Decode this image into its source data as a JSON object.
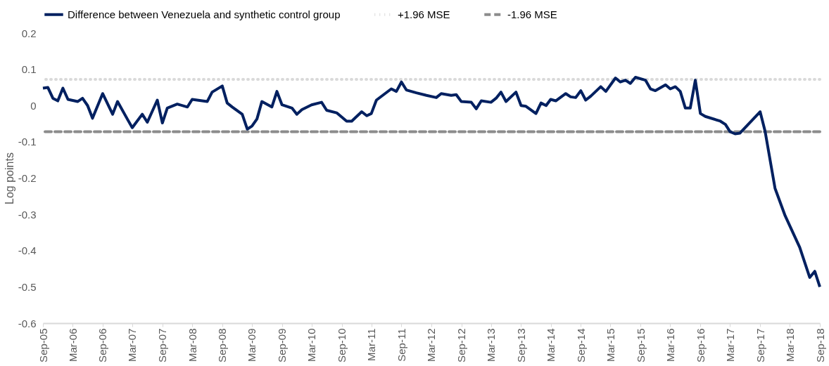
{
  "chart_data": {
    "type": "line",
    "ylabel": "Log points",
    "x": [
      "2005-09",
      "2005-10",
      "2005-11",
      "2005-12",
      "2006-01",
      "2006-02",
      "2006-04",
      "2006-05",
      "2006-06",
      "2006-07",
      "2006-09",
      "2006-11",
      "2006-12",
      "2007-02",
      "2007-03",
      "2007-05",
      "2007-06",
      "2007-08",
      "2007-09",
      "2007-10",
      "2007-12",
      "2008-02",
      "2008-03",
      "2008-06",
      "2008-07",
      "2008-09",
      "2008-10",
      "2008-11",
      "2009-01",
      "2009-02",
      "2009-03",
      "2009-04",
      "2009-05",
      "2009-07",
      "2009-08",
      "2009-09",
      "2009-11",
      "2009-12",
      "2010-01",
      "2010-03",
      "2010-05",
      "2010-06",
      "2010-08",
      "2010-10",
      "2010-11",
      "2011-01",
      "2011-02",
      "2011-03",
      "2011-04",
      "2011-07",
      "2011-08",
      "2011-09",
      "2011-10",
      "2011-12",
      "2012-02",
      "2012-04",
      "2012-05",
      "2012-07",
      "2012-08",
      "2012-09",
      "2012-11",
      "2012-12",
      "2013-01",
      "2013-03",
      "2013-04",
      "2013-05",
      "2013-06",
      "2013-08",
      "2013-09",
      "2013-10",
      "2013-12",
      "2014-01",
      "2014-02",
      "2014-03",
      "2014-04",
      "2014-06",
      "2014-07",
      "2014-08",
      "2014-09",
      "2014-10",
      "2014-11",
      "2015-01",
      "2015-02",
      "2015-04",
      "2015-05",
      "2015-06",
      "2015-07",
      "2015-08",
      "2015-10",
      "2015-11",
      "2015-12",
      "2016-02",
      "2016-03",
      "2016-04",
      "2016-05",
      "2016-06",
      "2016-07",
      "2016-08",
      "2016-09",
      "2016-10",
      "2017-01",
      "2017-02",
      "2017-03",
      "2017-04",
      "2017-05",
      "2017-09",
      "2017-10",
      "2017-12",
      "2018-02",
      "2018-05",
      "2018-07",
      "2018-08",
      "2018-09"
    ],
    "series": [
      {
        "name": "Difference between Venezuela and synthetic control group",
        "color": "#002060",
        "values": [
          0.048,
          0.05,
          0.02,
          0.013,
          0.048,
          0.017,
          0.011,
          0.02,
          0.0,
          -0.035,
          0.033,
          -0.024,
          0.011,
          -0.039,
          -0.061,
          -0.024,
          -0.046,
          0.015,
          -0.048,
          -0.007,
          0.004,
          -0.004,
          0.017,
          0.011,
          0.037,
          0.054,
          0.007,
          -0.004,
          -0.024,
          -0.065,
          -0.057,
          -0.037,
          0.011,
          -0.004,
          0.039,
          0.002,
          -0.007,
          -0.024,
          -0.011,
          0.002,
          0.009,
          -0.013,
          -0.02,
          -0.043,
          -0.043,
          -0.017,
          -0.028,
          -0.022,
          0.015,
          0.046,
          0.039,
          0.065,
          0.043,
          0.035,
          0.028,
          0.022,
          0.033,
          0.028,
          0.03,
          0.011,
          0.009,
          -0.009,
          0.013,
          0.009,
          0.02,
          0.037,
          0.011,
          0.037,
          0.0,
          -0.002,
          -0.022,
          0.007,
          0.0,
          0.017,
          0.013,
          0.033,
          0.024,
          0.022,
          0.041,
          0.015,
          0.026,
          0.052,
          0.039,
          0.076,
          0.065,
          0.07,
          0.061,
          0.078,
          0.07,
          0.046,
          0.041,
          0.057,
          0.046,
          0.052,
          0.039,
          -0.007,
          -0.007,
          0.07,
          -0.022,
          -0.03,
          -0.043,
          -0.052,
          -0.072,
          -0.078,
          -0.076,
          -0.017,
          -0.07,
          -0.228,
          -0.304,
          -0.391,
          -0.474,
          -0.457,
          -0.5
        ]
      }
    ],
    "ref_lines": [
      {
        "axis": "y",
        "value": 0.072,
        "label": "+1.96 MSE",
        "color": "#d9d9d9",
        "line_style": "dotted"
      },
      {
        "axis": "y",
        "value": -0.072,
        "label": "-1.96 MSE",
        "color": "#8c8c8c",
        "line_style": "dashed"
      }
    ],
    "xlim": [
      "2005-09",
      "2018-09"
    ],
    "xticks": [
      {
        "value": "2005-09",
        "label": "Sep-05"
      },
      {
        "value": "2006-03",
        "label": "Mar-06"
      },
      {
        "value": "2006-09",
        "label": "Sep-06"
      },
      {
        "value": "2007-03",
        "label": "Mar-07"
      },
      {
        "value": "2007-09",
        "label": "Sep-07"
      },
      {
        "value": "2008-03",
        "label": "Mar-08"
      },
      {
        "value": "2008-09",
        "label": "Sep-08"
      },
      {
        "value": "2009-03",
        "label": "Mar-09"
      },
      {
        "value": "2009-09",
        "label": "Sep-09"
      },
      {
        "value": "2010-03",
        "label": "Mar-10"
      },
      {
        "value": "2010-09",
        "label": "Sep-10"
      },
      {
        "value": "2011-03",
        "label": "Mar-11"
      },
      {
        "value": "2011-09",
        "label": "Sep-11"
      },
      {
        "value": "2012-03",
        "label": "Mar-12"
      },
      {
        "value": "2012-09",
        "label": "Sep-12"
      },
      {
        "value": "2013-03",
        "label": "Mar-13"
      },
      {
        "value": "2013-09",
        "label": "Sep-13"
      },
      {
        "value": "2014-03",
        "label": "Mar-14"
      },
      {
        "value": "2014-09",
        "label": "Sep-14"
      },
      {
        "value": "2015-03",
        "label": "Mar-15"
      },
      {
        "value": "2015-09",
        "label": "Sep-15"
      },
      {
        "value": "2016-03",
        "label": "Mar-16"
      },
      {
        "value": "2016-09",
        "label": "Sep-16"
      },
      {
        "value": "2017-03",
        "label": "Mar-17"
      },
      {
        "value": "2017-09",
        "label": "Sep-17"
      },
      {
        "value": "2018-03",
        "label": "Mar-18"
      },
      {
        "value": "2018-09",
        "label": "Sep-18"
      }
    ],
    "ylim": [
      -0.6,
      0.2
    ],
    "yticks": [
      -0.6,
      -0.5,
      -0.4,
      -0.3,
      -0.2,
      -0.1,
      0,
      0.1,
      0.2
    ],
    "grid": false,
    "legend": "top",
    "line_style": "solid",
    "marker": "none"
  }
}
